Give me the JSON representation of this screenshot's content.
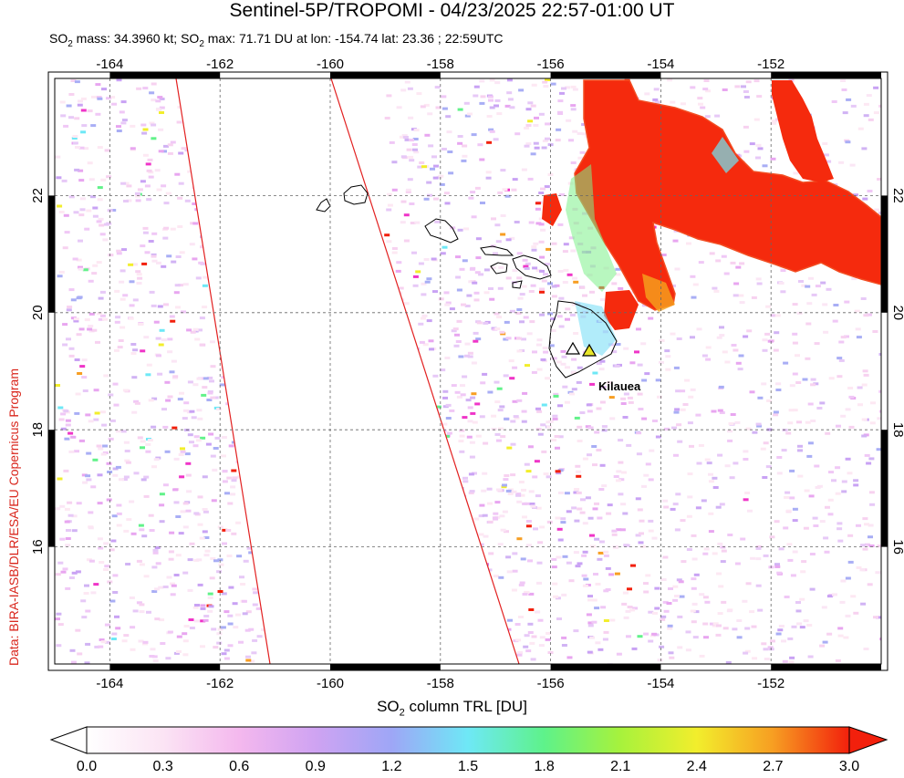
{
  "header": {
    "title": "Sentinel-5P/TROPOMI - 04/23/2025 22:57-01:00 UT",
    "subtitle_so2_mass_label": "SO",
    "subtitle_mass_part": " mass: 34.3960 kt; SO",
    "subtitle_max_part": " max: 71.71 DU at lon: -154.74 lat: 23.36 ; 22:59UTC",
    "subscript": "2"
  },
  "credit": "Data: BIRA-IASB/DLR/ESA/EU Copernicus Program",
  "map": {
    "lon_range": [
      -165,
      -150
    ],
    "lat_range": [
      14,
      24
    ],
    "lon_ticks": [
      "-164",
      "-162",
      "-160",
      "-158",
      "-156",
      "-154",
      "-152"
    ],
    "lat_ticks": [
      "16",
      "18",
      "20",
      "22"
    ],
    "volcano_label": "Kilauea"
  },
  "colorbar": {
    "label_prefix": "SO",
    "label_subscript": "2",
    "label_suffix": " column TRL [DU]",
    "ticks": [
      "0.0",
      "0.3",
      "0.6",
      "0.9",
      "1.2",
      "1.5",
      "1.8",
      "2.1",
      "2.4",
      "2.7",
      "3.0"
    ],
    "colors": [
      "#ffffff",
      "#fbe4f4",
      "#f4b8ee",
      "#cfa3f2",
      "#9ea6f6",
      "#6ee8f6",
      "#5ef28a",
      "#a7f23c",
      "#f2ee2c",
      "#f79e22",
      "#f2200c"
    ]
  },
  "colors": {
    "plume": "#f52a0d",
    "swath_edge": "#e22020"
  }
}
